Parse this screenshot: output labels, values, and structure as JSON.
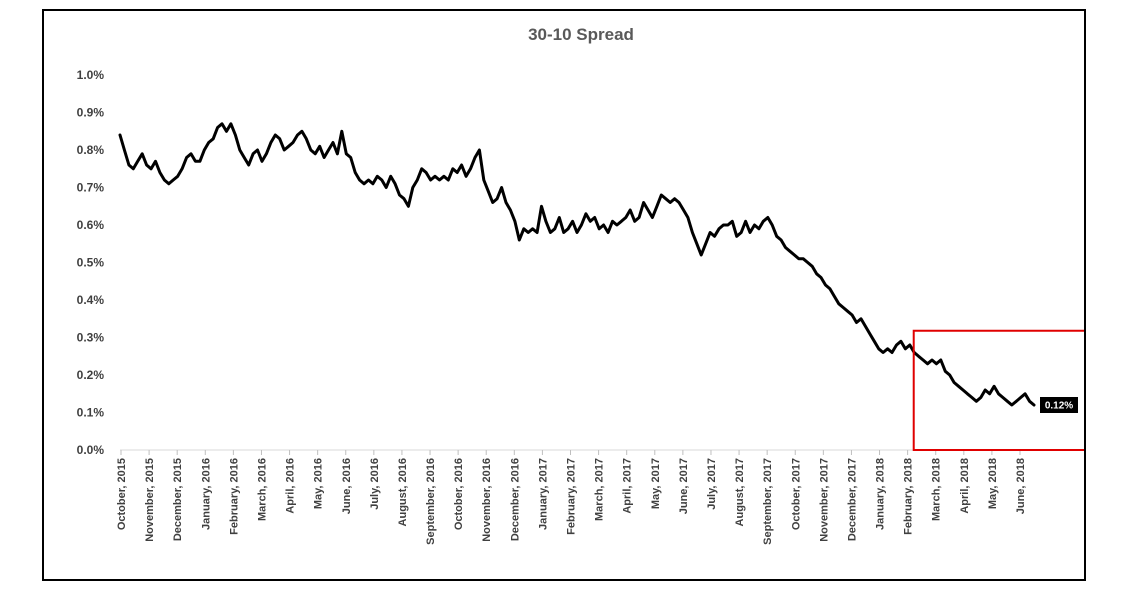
{
  "chart_data": {
    "type": "line",
    "title": "30-10  Spread",
    "xlabel": "",
    "ylabel": "",
    "ylim": [
      0,
      1.0
    ],
    "y_ticks": [
      "0.0%",
      "0.1%",
      "0.2%",
      "0.3%",
      "0.4%",
      "0.5%",
      "0.6%",
      "0.7%",
      "0.8%",
      "0.9%",
      "1.0%"
    ],
    "x_tick_labels": [
      "October, 2015",
      "November, 2015",
      "December, 2015",
      "January, 2016",
      "February, 2016",
      "March, 2016",
      "April, 2016",
      "May, 2016",
      "June, 2016",
      "July, 2016",
      "August, 2016",
      "September, 2016",
      "October, 2016",
      "November, 2016",
      "December, 2016",
      "January, 2017",
      "February, 2017",
      "March, 2017",
      "April, 2017",
      "May, 2017",
      "June, 2017",
      "July, 2017",
      "August, 2017",
      "September, 2017",
      "October, 2017",
      "November, 2017",
      "December, 2017",
      "January, 2018",
      "February, 2018",
      "March, 2018",
      "April, 2018",
      "May, 2018",
      "June, 2018"
    ],
    "grid": false,
    "legend": "none",
    "line_color": "#000000",
    "highlight_color": "#e00000",
    "highlight_range": [
      "March, 2018",
      "June, 2018"
    ],
    "end_label": "0.12%",
    "series": [
      {
        "values": [
          0.84,
          0.8,
          0.76,
          0.75,
          0.77,
          0.79,
          0.76,
          0.75,
          0.77,
          0.74,
          0.72,
          0.71,
          0.72,
          0.73,
          0.75,
          0.78,
          0.79,
          0.77,
          0.77,
          0.8,
          0.82,
          0.83,
          0.86,
          0.87,
          0.85,
          0.87,
          0.84,
          0.8,
          0.78,
          0.76,
          0.79,
          0.8,
          0.77,
          0.79,
          0.82,
          0.84,
          0.83,
          0.8,
          0.81,
          0.82,
          0.84,
          0.85,
          0.83,
          0.8,
          0.79,
          0.81,
          0.78,
          0.8,
          0.82,
          0.79,
          0.85,
          0.79,
          0.78,
          0.74,
          0.72,
          0.71,
          0.72,
          0.71,
          0.73,
          0.72,
          0.7,
          0.73,
          0.71,
          0.68,
          0.67,
          0.65,
          0.7,
          0.72,
          0.75,
          0.74,
          0.72,
          0.73,
          0.72,
          0.73,
          0.72,
          0.75,
          0.74,
          0.76,
          0.73,
          0.75,
          0.78,
          0.8,
          0.72,
          0.69,
          0.66,
          0.67,
          0.7,
          0.66,
          0.64,
          0.61,
          0.56,
          0.59,
          0.58,
          0.59,
          0.58,
          0.65,
          0.61,
          0.58,
          0.59,
          0.62,
          0.58,
          0.59,
          0.61,
          0.58,
          0.6,
          0.63,
          0.61,
          0.62,
          0.59,
          0.6,
          0.58,
          0.61,
          0.6,
          0.61,
          0.62,
          0.64,
          0.61,
          0.62,
          0.66,
          0.64,
          0.62,
          0.65,
          0.68,
          0.67,
          0.66,
          0.67,
          0.66,
          0.64,
          0.62,
          0.58,
          0.55,
          0.52,
          0.55,
          0.58,
          0.57,
          0.59,
          0.6,
          0.6,
          0.61,
          0.57,
          0.58,
          0.61,
          0.58,
          0.6,
          0.59,
          0.61,
          0.62,
          0.6,
          0.57,
          0.56,
          0.54,
          0.53,
          0.52,
          0.51,
          0.51,
          0.5,
          0.49,
          0.47,
          0.46,
          0.44,
          0.43,
          0.41,
          0.39,
          0.38,
          0.37,
          0.36,
          0.34,
          0.35,
          0.33,
          0.31,
          0.29,
          0.27,
          0.26,
          0.27,
          0.26,
          0.28,
          0.29,
          0.27,
          0.28,
          0.26,
          0.25,
          0.24,
          0.23,
          0.24,
          0.23,
          0.24,
          0.21,
          0.2,
          0.18,
          0.17,
          0.16,
          0.15,
          0.14,
          0.13,
          0.14,
          0.16,
          0.15,
          0.17,
          0.15,
          0.14,
          0.13,
          0.12,
          0.13,
          0.14,
          0.15,
          0.13,
          0.12
        ]
      }
    ]
  }
}
